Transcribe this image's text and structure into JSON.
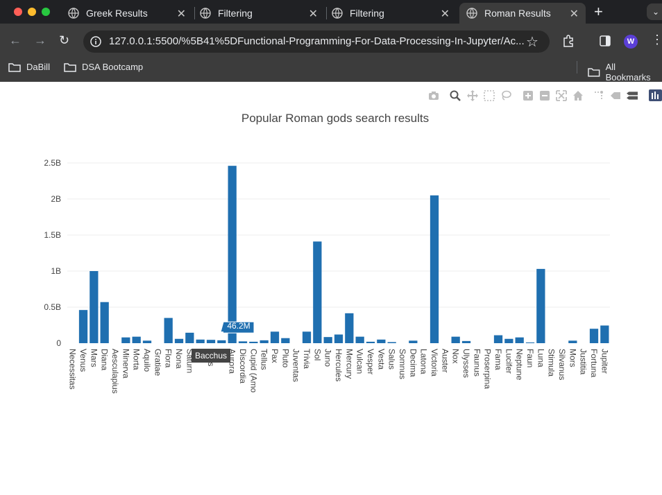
{
  "browser": {
    "tabs": [
      {
        "label": "Greek Results",
        "active": false
      },
      {
        "label": "Filtering",
        "active": false
      },
      {
        "label": "Filtering",
        "active": false
      },
      {
        "label": "Roman Results",
        "active": true
      }
    ],
    "url": "127.0.0.1:5500/%5B41%5DFunctional-Programming-For-Data-Processing-In-Jupyter/Ac...",
    "profile_initial": "W",
    "bookmarks": [
      "DaBill",
      "DSA Bootcamp"
    ],
    "all_bookmarks_label": "All Bookmarks",
    "colors": {
      "tabstrip": "#202124",
      "toolbar": "#3c3c3c",
      "profile": "#5b3fd6"
    }
  },
  "modebar": {
    "icons": [
      "camera-icon",
      "zoom-icon",
      "pan-icon",
      "box-select-icon",
      "lasso-icon",
      "zoom-in-icon",
      "zoom-out-icon",
      "autoscale-icon",
      "reset-axes-icon",
      "spike-lines-icon",
      "hover-closest-icon",
      "hover-compare-icon",
      "plotly-logo-icon"
    ]
  },
  "chart_data": {
    "type": "bar",
    "title": "Popular Roman gods search results",
    "xlabel": "",
    "ylabel": "",
    "ylim": [
      0,
      2600000000
    ],
    "y_ticks": [
      {
        "value": 0,
        "label": "0"
      },
      {
        "value": 500000000,
        "label": "0.5B"
      },
      {
        "value": 1000000000,
        "label": "1B"
      },
      {
        "value": 1500000000,
        "label": "1.5B"
      },
      {
        "value": 2000000000,
        "label": "2B"
      },
      {
        "value": 2500000000,
        "label": "2.5B"
      }
    ],
    "bar_color": "#1f6fb0",
    "grid": true,
    "categories": [
      "Necessitas",
      "Venus",
      "Mars",
      "Diana",
      "Aesculapius",
      "Minerva",
      "Morta",
      "Aquilo",
      "Gratiae",
      "Flora",
      "Nona",
      "Saturn",
      "Ceres",
      "Bacchus",
      "Bellona",
      "Aurora",
      "Discordia",
      "Cupid (Amor)",
      "Tellus",
      "Pax",
      "Pluto",
      "Juventas",
      "Trivia",
      "Sol",
      "Juno",
      "Hercules",
      "Mercury",
      "Vulcan",
      "Vesper",
      "Vesta",
      "Salus",
      "Somnus",
      "Decima",
      "Latona",
      "Victoria",
      "Auster",
      "Nox",
      "Ulysses",
      "Faunus",
      "Proserpina",
      "Fama",
      "Lucifer",
      "Neptune",
      "Faun",
      "Luna",
      "Stimula",
      "Silvanus",
      "Mors",
      "Justitia",
      "Fortuna",
      "Jupiter"
    ],
    "tick_labels": [
      "Necessitas",
      "Venus",
      "Mars",
      "Diana",
      "Aesculapius",
      "Minerva",
      "Morta",
      "Aquilo",
      "Gratiae",
      "Flora",
      "Nona",
      "Saturn",
      "es",
      "chus",
      "ona",
      "Aurora",
      "Discordia",
      "Cupid (Amo",
      "Tellus",
      "Pax",
      "Pluto",
      "Juventas",
      "Trivia",
      "Sol",
      "Juno",
      "Hercules",
      "Mercury",
      "Vulcan",
      "Vesper",
      "Vesta",
      "Salus",
      "Somnus",
      "Decima",
      "Latona",
      "Victoria",
      "Auster",
      "Nox",
      "Ulysses",
      "Faunus",
      "Proserpina",
      "Fama",
      "Lucifer",
      "Neptune",
      "Faun",
      "Luna",
      "Stimula",
      "Silvanus",
      "Mors",
      "Justitia",
      "Fortuna",
      "Jupiter"
    ],
    "values": [
      0,
      460000000,
      1000000000,
      570000000,
      0,
      80000000,
      90000000,
      35000000,
      0,
      350000000,
      60000000,
      145000000,
      50000000,
      46200000,
      40000000,
      2460000000,
      25000000,
      20000000,
      40000000,
      160000000,
      70000000,
      0,
      160000000,
      1410000000,
      85000000,
      120000000,
      415000000,
      90000000,
      20000000,
      50000000,
      15000000,
      0,
      35000000,
      0,
      2050000000,
      0,
      90000000,
      30000000,
      0,
      0,
      110000000,
      60000000,
      80000000,
      10000000,
      1030000000,
      0,
      0,
      35000000,
      0,
      200000000,
      245000000
    ],
    "hover": {
      "category_index": 13,
      "category": "Bacchus",
      "value_label": "46.2M"
    }
  }
}
